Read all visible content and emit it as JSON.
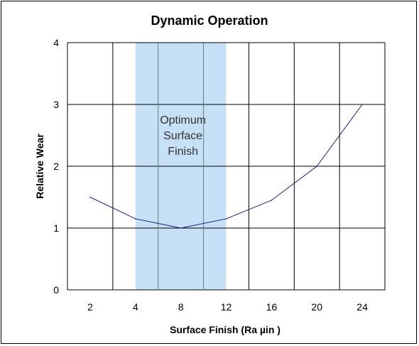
{
  "chart_data": {
    "type": "line",
    "title": "Dynamic Operation",
    "xlabel": "Surface Finish (Ra µin )",
    "ylabel": "Relative Wear",
    "x_tick_labels": [
      "2",
      "4",
      "8",
      "12",
      "16",
      "20",
      "24"
    ],
    "y_tick_labels": [
      "0",
      "1",
      "2",
      "3",
      "4"
    ],
    "ylim": [
      0,
      4
    ],
    "grid": true,
    "legend": "none",
    "series": [
      {
        "x": [
          "2",
          "4",
          "8",
          "12",
          "16",
          "20",
          "24"
        ],
        "values": [
          1.5,
          1.15,
          1.0,
          1.15,
          1.45,
          2.0,
          3.0
        ],
        "color": "#1a1a80"
      }
    ],
    "highlight_band": {
      "from": "4",
      "to": "12",
      "label_lines": [
        "Optimum",
        "Surface",
        "Finish"
      ],
      "color": "#c6e0f5"
    }
  }
}
